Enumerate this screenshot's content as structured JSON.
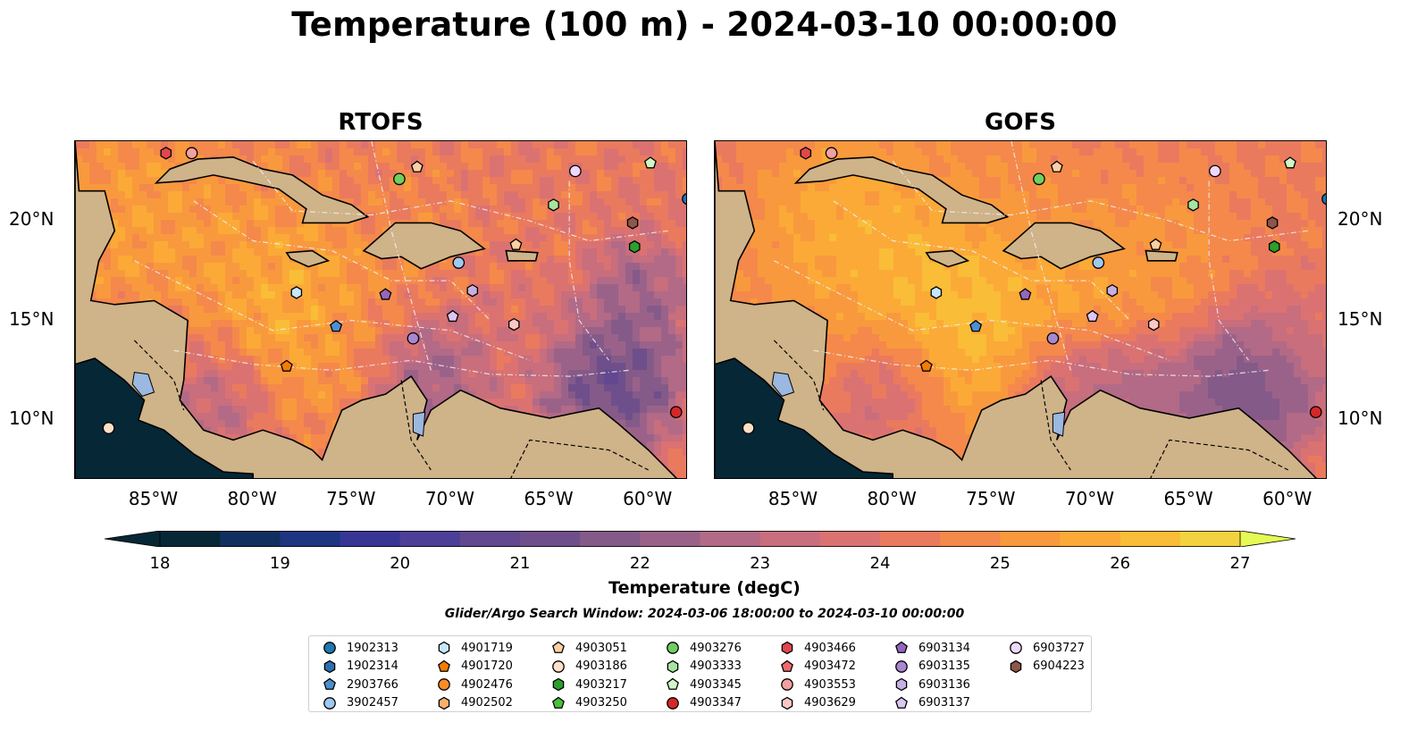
{
  "title": "Temperature (100 m) - 2024-03-10 00:00:00",
  "panels": [
    {
      "title": "RTOFS",
      "model": "rtofs"
    },
    {
      "title": "GOFS",
      "model": "gofs"
    }
  ],
  "lon_ticks": [
    "85°W",
    "80°W",
    "75°W",
    "70°W",
    "65°W",
    "60°W"
  ],
  "lat_ticks": [
    "20°N",
    "15°N",
    "10°N"
  ],
  "colorbar": {
    "label": "Temperature (degC)",
    "ticks": [
      "18",
      "19",
      "20",
      "21",
      "22",
      "23",
      "24",
      "25",
      "26",
      "27"
    ],
    "colors": [
      "#062736",
      "#0f2f5e",
      "#1e3580",
      "#373695",
      "#4d3f98",
      "#61488f",
      "#6e4f8b",
      "#845a89",
      "#9b6289",
      "#b26a86",
      "#c86e7d",
      "#db7272",
      "#ea7a5e",
      "#f4894b",
      "#f9993d",
      "#fbaa37",
      "#f9bd38",
      "#f3d23f"
    ],
    "under_color": "#062736",
    "over_color": "#e5fa55"
  },
  "search_window": "Glider/Argo Search Window: 2024-03-06 18:00:00 to 2024-03-10 00:00:00",
  "legend": [
    {
      "id": "1902313",
      "marker": "circle",
      "color": "#1f77b4"
    },
    {
      "id": "1902314",
      "marker": "hexagon",
      "color": "#2a6fae"
    },
    {
      "id": "2903766",
      "marker": "pentagon",
      "color": "#4a90d0"
    },
    {
      "id": "3902457",
      "marker": "circle",
      "color": "#9ec9f0"
    },
    {
      "id": "4901719",
      "marker": "hexagon",
      "color": "#c6e6fb"
    },
    {
      "id": "4901720",
      "marker": "pentagon",
      "color": "#f57c00"
    },
    {
      "id": "4902476",
      "marker": "circle",
      "color": "#fb8c23"
    },
    {
      "id": "4902502",
      "marker": "hexagon",
      "color": "#fdae6b"
    },
    {
      "id": "4903051",
      "marker": "pentagon",
      "color": "#fdd0a2"
    },
    {
      "id": "4903186",
      "marker": "circle",
      "color": "#fde0c5"
    },
    {
      "id": "4903217",
      "marker": "hexagon",
      "color": "#2ca02c"
    },
    {
      "id": "4903250",
      "marker": "pentagon",
      "color": "#4cbf3c"
    },
    {
      "id": "4903276",
      "marker": "circle",
      "color": "#6fcf5f"
    },
    {
      "id": "4903333",
      "marker": "hexagon",
      "color": "#a6e3a0"
    },
    {
      "id": "4903345",
      "marker": "pentagon",
      "color": "#d0f5c8"
    },
    {
      "id": "4903347",
      "marker": "circle",
      "color": "#d62728"
    },
    {
      "id": "4903466",
      "marker": "hexagon",
      "color": "#e0474c"
    },
    {
      "id": "4903472",
      "marker": "pentagon",
      "color": "#ef6a6c"
    },
    {
      "id": "4903553",
      "marker": "circle",
      "color": "#f4a0a0"
    },
    {
      "id": "4903629",
      "marker": "hexagon",
      "color": "#fbc7c4"
    },
    {
      "id": "6903134",
      "marker": "pentagon",
      "color": "#9467bd"
    },
    {
      "id": "6903135",
      "marker": "circle",
      "color": "#a887d0"
    },
    {
      "id": "6903136",
      "marker": "hexagon",
      "color": "#c5b0e3"
    },
    {
      "id": "6903137",
      "marker": "pentagon",
      "color": "#dcc6f3"
    },
    {
      "id": "6903727",
      "marker": "circle",
      "color": "#eed8fb"
    },
    {
      "id": "6904223",
      "marker": "hexagon",
      "color": "#8c564b"
    }
  ],
  "map_extent": {
    "lon": [
      -89,
      -58
    ],
    "lat": [
      7,
      24
    ]
  },
  "floats": [
    {
      "id": "4903466",
      "lon": -84.4,
      "lat": 23.4
    },
    {
      "id": "4903553",
      "lon": -83.1,
      "lat": 23.4
    },
    {
      "id": "4903051",
      "lon": -71.7,
      "lat": 22.7
    },
    {
      "id": "4903276",
      "lon": -72.6,
      "lat": 22.1
    },
    {
      "id": "6903727",
      "lon": -63.7,
      "lat": 22.5
    },
    {
      "id": "4903345",
      "lon": -59.9,
      "lat": 22.9
    },
    {
      "id": "1902313",
      "lon": -58.0,
      "lat": 21.1
    },
    {
      "id": "4903333",
      "lon": -64.8,
      "lat": 20.8
    },
    {
      "id": "6904223",
      "lon": -60.8,
      "lat": 19.9
    },
    {
      "id": "4903217",
      "lon": -60.7,
      "lat": 18.7
    },
    {
      "id": "4903051",
      "lon": -66.7,
      "lat": 18.8
    },
    {
      "id": "3902457",
      "lon": -69.6,
      "lat": 17.9
    },
    {
      "id": "4901719",
      "lon": -77.8,
      "lat": 16.4
    },
    {
      "id": "6903134",
      "lon": -73.3,
      "lat": 16.3
    },
    {
      "id": "6903136",
      "lon": -68.9,
      "lat": 16.5
    },
    {
      "id": "6903137",
      "lon": -69.9,
      "lat": 15.2
    },
    {
      "id": "4903629",
      "lon": -66.8,
      "lat": 14.8
    },
    {
      "id": "2903766",
      "lon": -75.8,
      "lat": 14.7
    },
    {
      "id": "6903135",
      "lon": -71.9,
      "lat": 14.1
    },
    {
      "id": "4901720",
      "lon": -78.3,
      "lat": 12.7
    },
    {
      "id": "4903186",
      "lon": -87.3,
      "lat": 9.6
    },
    {
      "id": "4903347",
      "lon": -58.6,
      "lat": 10.4
    }
  ]
}
